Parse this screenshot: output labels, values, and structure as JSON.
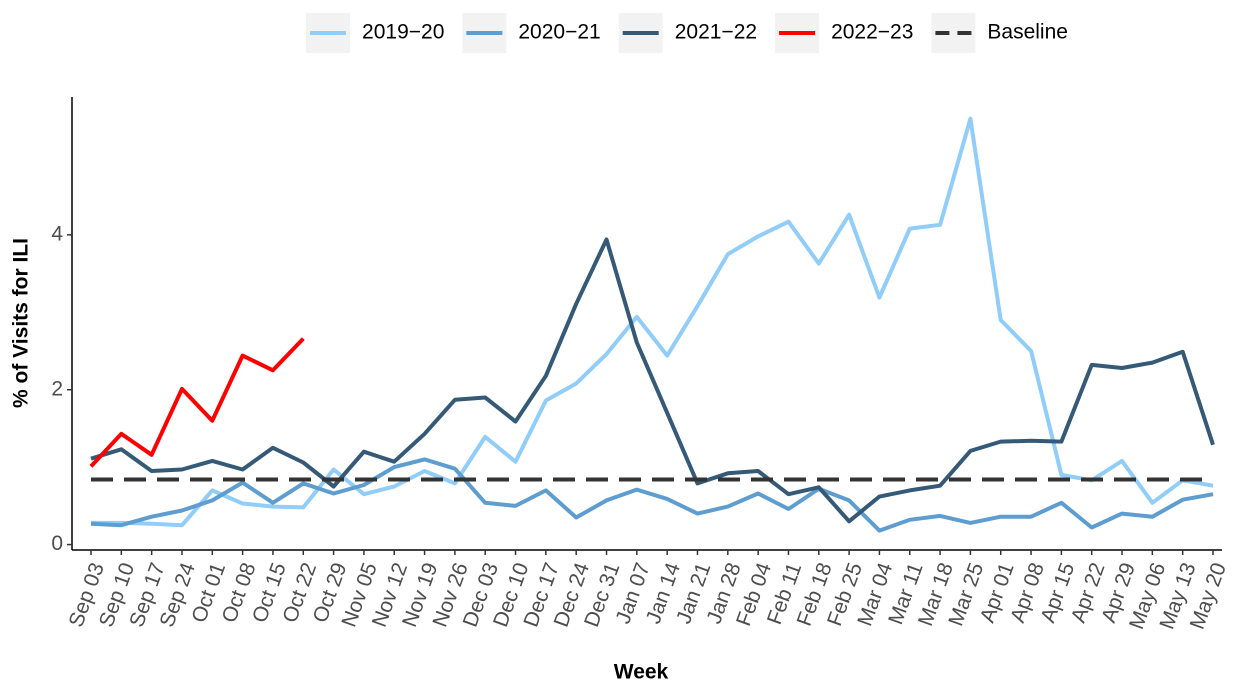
{
  "chart_data": {
    "type": "line",
    "x_label": "Week",
    "y_label": "% of Visits for ILI",
    "categories": [
      "Sep 03",
      "Sep 10",
      "Sep 17",
      "Sep 24",
      "Oct 01",
      "Oct 08",
      "Oct 15",
      "Oct 22",
      "Oct 29",
      "Nov 05",
      "Nov 12",
      "Nov 19",
      "Nov 26",
      "Dec 03",
      "Dec 10",
      "Dec 17",
      "Dec 24",
      "Dec 31",
      "Jan 07",
      "Jan 14",
      "Jan 21",
      "Jan 28",
      "Feb 04",
      "Feb 11",
      "Feb 18",
      "Feb 25",
      "Mar 04",
      "Mar 11",
      "Mar 18",
      "Mar 25",
      "Apr 01",
      "Apr 08",
      "Apr 15",
      "Apr 22",
      "Apr 29",
      "May 06",
      "May 13",
      "May 20"
    ],
    "series": [
      {
        "name": "2019−20",
        "color": "#90cdf9",
        "values": [
          0.28,
          0.28,
          0.27,
          0.25,
          0.7,
          0.53,
          0.49,
          0.48,
          0.97,
          0.65,
          0.75,
          0.95,
          0.79,
          1.39,
          1.07,
          1.86,
          2.08,
          2.46,
          2.94,
          2.44,
          3.08,
          3.75,
          3.98,
          4.17,
          3.63,
          4.26,
          3.19,
          4.08,
          4.13,
          5.5,
          2.9,
          2.5,
          0.9,
          0.83,
          1.08,
          0.54,
          0.83,
          0.76
        ]
      },
      {
        "name": "2020−21",
        "color": "#5e9dd0",
        "values": [
          0.27,
          0.25,
          0.36,
          0.44,
          0.57,
          0.8,
          0.54,
          0.79,
          0.66,
          0.77,
          1.0,
          1.1,
          0.98,
          0.54,
          0.5,
          0.7,
          0.35,
          0.57,
          0.71,
          0.59,
          0.4,
          0.49,
          0.66,
          0.46,
          0.72,
          0.57,
          0.18,
          0.32,
          0.37,
          0.28,
          0.36,
          0.36,
          0.54,
          0.22,
          0.4,
          0.36,
          0.58,
          0.65
        ]
      },
      {
        "name": "2021−22",
        "color": "#355a78",
        "values": [
          1.11,
          1.23,
          0.95,
          0.97,
          1.08,
          0.97,
          1.25,
          1.06,
          0.75,
          1.2,
          1.07,
          1.43,
          1.87,
          1.9,
          1.59,
          2.18,
          3.11,
          3.94,
          2.61,
          1.7,
          0.79,
          0.92,
          0.95,
          0.65,
          0.74,
          0.3,
          0.62,
          0.7,
          0.76,
          1.21,
          1.33,
          1.34,
          1.33,
          2.32,
          2.28,
          2.35,
          2.49,
          1.29
        ]
      },
      {
        "name": "2022−23",
        "color": "#ff0000",
        "values": [
          1.01,
          1.43,
          1.16,
          2.01,
          1.6,
          2.44,
          2.25,
          2.66,
          null,
          null,
          null,
          null,
          null,
          null,
          null,
          null,
          null,
          null,
          null,
          null,
          null,
          null,
          null,
          null,
          null,
          null,
          null,
          null,
          null,
          null,
          null,
          null,
          null,
          null,
          null,
          null,
          null,
          null
        ]
      },
      {
        "name": "Baseline",
        "color": "#333333",
        "dash": true,
        "values": [
          0.84,
          0.84,
          0.84,
          0.84,
          0.84,
          0.84,
          0.84,
          0.84,
          0.84,
          0.84,
          0.84,
          0.84,
          0.84,
          0.84,
          0.84,
          0.84,
          0.84,
          0.84,
          0.84,
          0.84,
          0.84,
          0.84,
          0.84,
          0.84,
          0.84,
          0.84,
          0.84,
          0.84,
          0.84,
          0.84,
          0.84,
          0.84,
          0.84,
          0.84,
          0.84,
          0.84,
          0.84,
          0.84
        ]
      }
    ],
    "ylim": [
      -0.07,
      5.78
    ],
    "yticks": [
      0,
      2,
      4
    ],
    "grid": false,
    "legend": "top"
  }
}
